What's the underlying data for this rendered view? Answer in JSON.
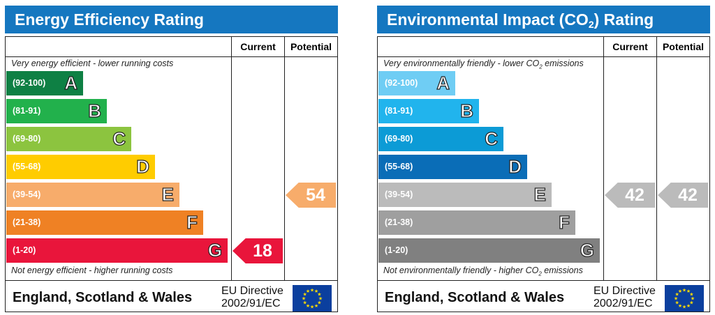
{
  "chart_data": [
    {
      "type": "bar",
      "title": "Energy Efficiency Rating",
      "columns": [
        "Current",
        "Potential"
      ],
      "top_note": "Very energy efficient - lower running costs",
      "bottom_note": "Not energy efficient - higher running costs",
      "bands": [
        {
          "range": "(92-100)",
          "letter": "A",
          "color": "#0e8044"
        },
        {
          "range": "(81-91)",
          "letter": "B",
          "color": "#22b14c"
        },
        {
          "range": "(69-80)",
          "letter": "C",
          "color": "#8cc43f"
        },
        {
          "range": "(55-68)",
          "letter": "D",
          "color": "#ffcc00"
        },
        {
          "range": "(39-54)",
          "letter": "E",
          "color": "#f7ac6b"
        },
        {
          "range": "(21-38)",
          "letter": "F",
          "color": "#ef8124"
        },
        {
          "range": "(1-20)",
          "letter": "G",
          "color": "#e9153b"
        }
      ],
      "current": {
        "value": 18,
        "band": "G",
        "color": "#e9153b"
      },
      "potential": {
        "value": 54,
        "band": "E",
        "color": "#f7ac6b"
      },
      "footer": "England, Scotland & Wales",
      "directive": [
        "EU Directive",
        "2002/91/EC"
      ]
    },
    {
      "type": "bar",
      "title": "Environmental Impact (CO₂) Rating",
      "columns": [
        "Current",
        "Potential"
      ],
      "top_note": "Very environmentally friendly - lower CO₂ emissions",
      "bottom_note": "Not environmentally friendly - higher CO₂ emissions",
      "bands": [
        {
          "range": "(92-100)",
          "letter": "A",
          "color": "#6fcdf4"
        },
        {
          "range": "(81-91)",
          "letter": "B",
          "color": "#21b4ed"
        },
        {
          "range": "(69-80)",
          "letter": "C",
          "color": "#0c9bd6"
        },
        {
          "range": "(55-68)",
          "letter": "D",
          "color": "#0a6db7"
        },
        {
          "range": "(39-54)",
          "letter": "E",
          "color": "#bbbbbb"
        },
        {
          "range": "(21-38)",
          "letter": "F",
          "color": "#9f9f9f"
        },
        {
          "range": "(1-20)",
          "letter": "G",
          "color": "#808080"
        }
      ],
      "current": {
        "value": 42,
        "band": "E",
        "color": "#bbbbbb"
      },
      "potential": {
        "value": 42,
        "band": "E",
        "color": "#bbbbbb"
      },
      "footer": "England, Scotland & Wales",
      "directive": [
        "EU Directive",
        "2002/91/EC"
      ]
    }
  ]
}
